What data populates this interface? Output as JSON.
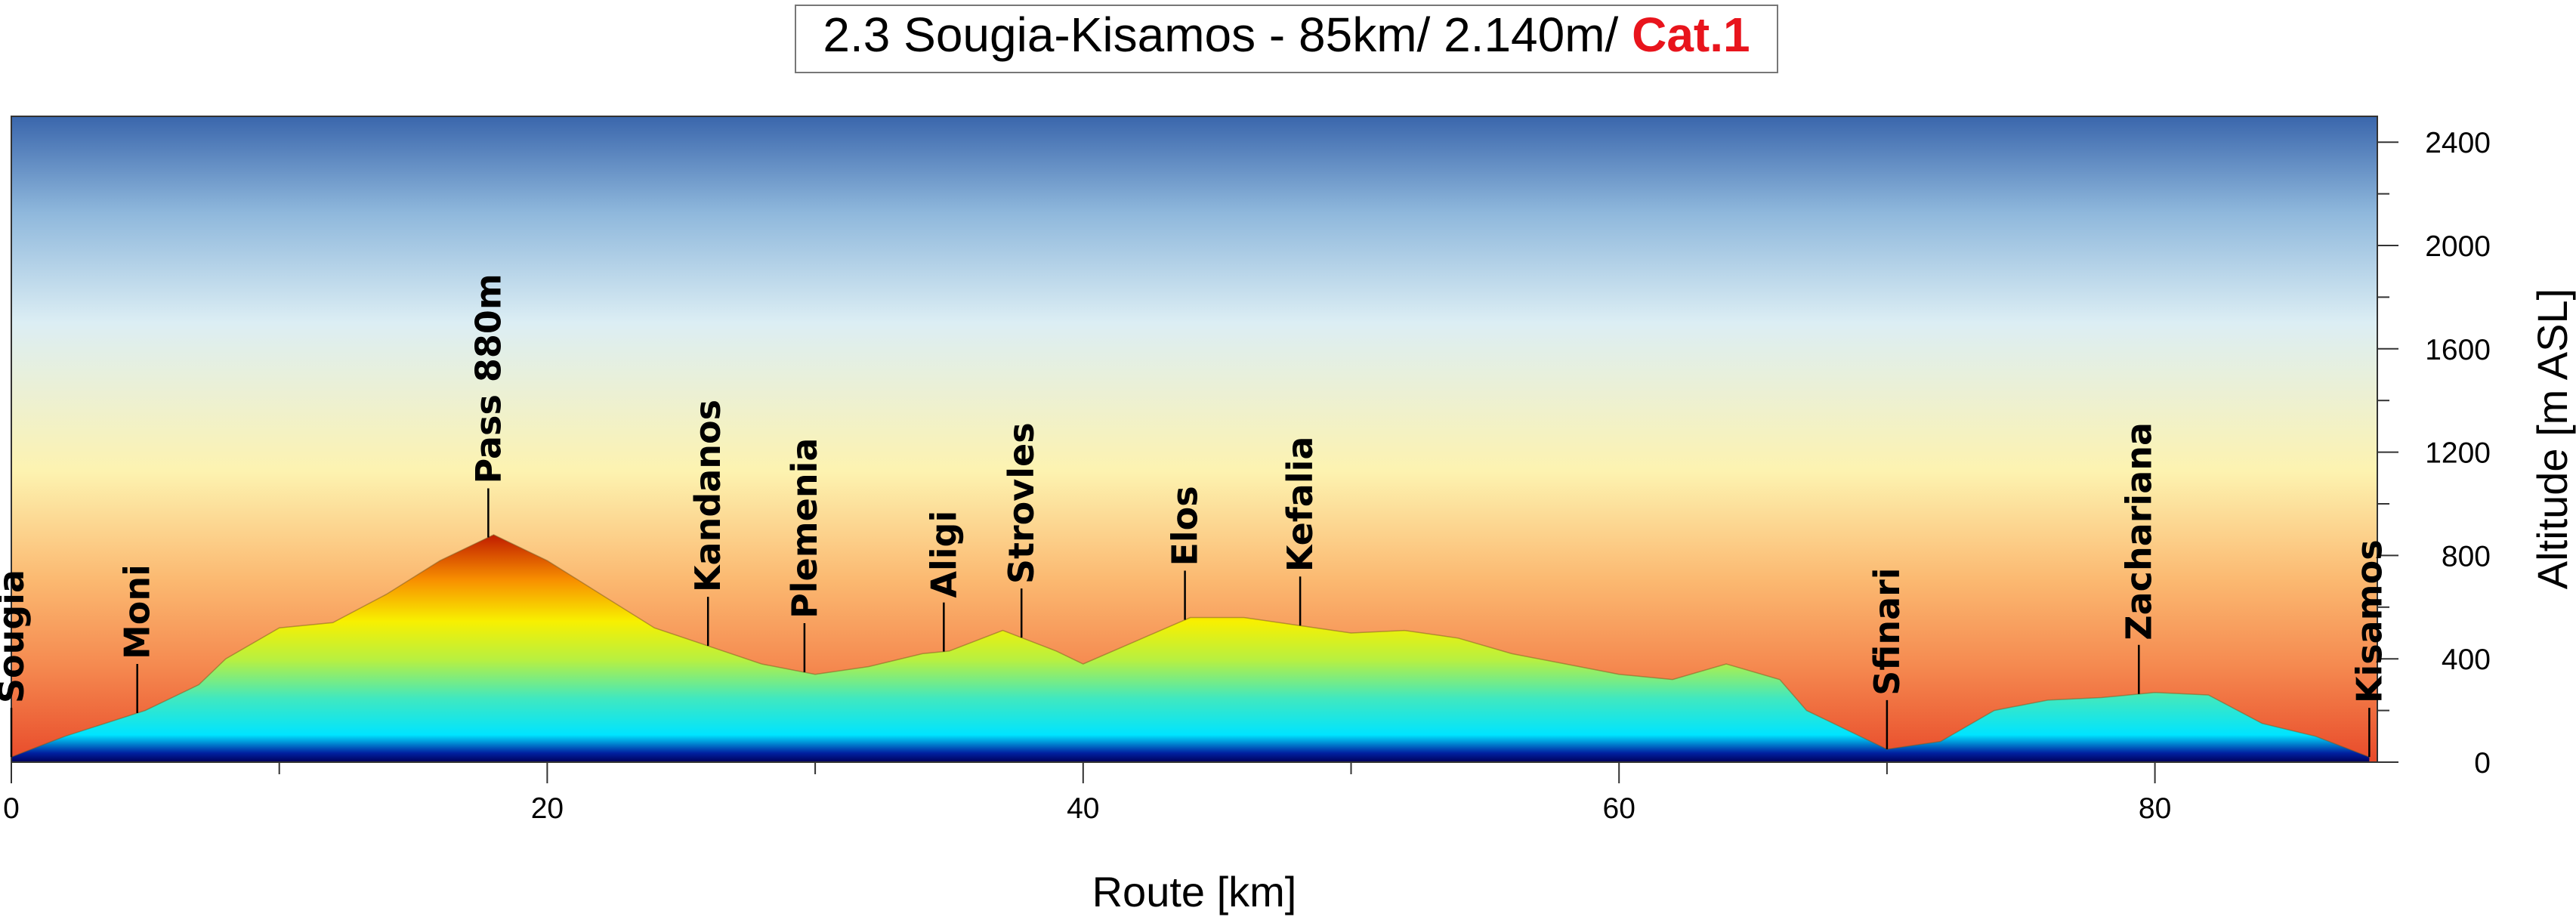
{
  "chart_data": {
    "type": "area",
    "title": "2.3 Sougia-Kisamos - 85km/ 2.140m/",
    "title_highlight": "Cat.1",
    "title_highlight_color": "#e8141c",
    "x_label": "Route [km]",
    "y_label": "Altitude [m ASL]",
    "x": [
      0,
      2,
      5,
      7,
      8,
      10,
      12,
      14,
      16,
      18,
      20,
      22,
      24,
      26,
      28,
      30,
      32,
      34,
      35,
      37,
      39,
      40,
      42,
      44,
      46,
      48,
      50,
      52,
      54,
      56,
      58,
      60,
      62,
      64,
      66,
      67,
      69,
      70,
      72,
      74,
      76,
      78,
      80,
      82,
      84,
      86,
      88
    ],
    "values": [
      20,
      100,
      200,
      300,
      400,
      520,
      540,
      650,
      780,
      880,
      780,
      650,
      520,
      450,
      380,
      340,
      370,
      420,
      430,
      510,
      430,
      380,
      470,
      560,
      560,
      530,
      500,
      510,
      480,
      420,
      380,
      340,
      320,
      380,
      320,
      200,
      100,
      50,
      80,
      200,
      240,
      250,
      270,
      260,
      150,
      100,
      20
    ],
    "xlim": [
      0,
      88.3
    ],
    "ylim": [
      0,
      2500
    ],
    "xticks": [
      0,
      20,
      40,
      60,
      80
    ],
    "yticks": [
      0,
      400,
      800,
      1200,
      1600,
      2000,
      2400
    ],
    "y_axis_side": "right",
    "places": [
      {
        "name": "Sougia",
        "x": 0
      },
      {
        "name": "Moni",
        "x": 4.7
      },
      {
        "name": "Pass 880m",
        "x": 17.8
      },
      {
        "name": "Kandanos",
        "x": 26
      },
      {
        "name": "Plemenia",
        "x": 29.6
      },
      {
        "name": "Aligi",
        "x": 34.8
      },
      {
        "name": "Strovles",
        "x": 37.7
      },
      {
        "name": "Elos",
        "x": 43.8
      },
      {
        "name": "Kefalia",
        "x": 48.1
      },
      {
        "name": "Sfinari",
        "x": 70
      },
      {
        "name": "Zachariana",
        "x": 79.4
      },
      {
        "name": "Kisamos",
        "x": 88
      }
    ]
  }
}
